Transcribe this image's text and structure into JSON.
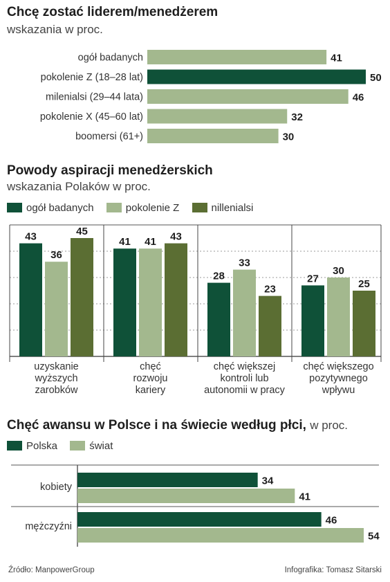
{
  "colors": {
    "dark": "#0f5138",
    "light": "#a3b88e",
    "mid": "#5b6e33",
    "grid": "#9a9a9a"
  },
  "chart_data": [
    {
      "type": "bar",
      "orientation": "horizontal",
      "title": "Chcę zostać liderem/menedżerem",
      "subtitle": "wskazania w proc.",
      "categories": [
        "ogół badanych",
        "pokolenie Z (18–28 lat)",
        "milenialsi (29–44 lata)",
        "pokolenie X (45–60 lat)",
        "boomersi (61+)"
      ],
      "values": [
        41,
        50,
        46,
        32,
        30
      ],
      "highlight_index": 1,
      "xlim": [
        0,
        50
      ]
    },
    {
      "type": "bar",
      "title": "Powody aspiracji menedżerskich",
      "subtitle": "wskazania Polaków w proc.",
      "categories": [
        "uzyskanie wyższych zarobków",
        "chęć rozwoju kariery",
        "chęć większej kontroli lub autonomii w pracy",
        "chęć większego pozytywnego wpływu"
      ],
      "category_lines": [
        [
          "uzyskanie",
          "wyższych",
          "zarobków"
        ],
        [
          "chęć",
          "rozwoju",
          "kariery"
        ],
        [
          "chęć większej",
          "kontroli lub",
          "autonomii w pracy"
        ],
        [
          "chęć większego",
          "pozytywnego",
          "wpływu"
        ]
      ],
      "series": [
        {
          "name": "ogół badanych",
          "values": [
            43,
            41,
            28,
            27
          ]
        },
        {
          "name": "pokolenie Z",
          "values": [
            36,
            41,
            33,
            30
          ]
        },
        {
          "name": "nillenialsi",
          "values": [
            45,
            43,
            23,
            25
          ]
        }
      ],
      "ylim": [
        0,
        50
      ],
      "grid": true,
      "legend": "top-left"
    },
    {
      "type": "bar",
      "orientation": "horizontal",
      "title": "Chęć awansu w Polsce i na świecie według płci,",
      "subtitle": "w proc.",
      "categories": [
        "kobiety",
        "mężczyźni"
      ],
      "series": [
        {
          "name": "Polska",
          "values": [
            34,
            46
          ]
        },
        {
          "name": "świat",
          "values": [
            41,
            54
          ]
        }
      ],
      "xlim": [
        0,
        54
      ],
      "legend": "top-left"
    }
  ],
  "footer": {
    "source": "Źródło: ManpowerGroup",
    "credit": "Infografika: Tomasz Sitarski"
  }
}
